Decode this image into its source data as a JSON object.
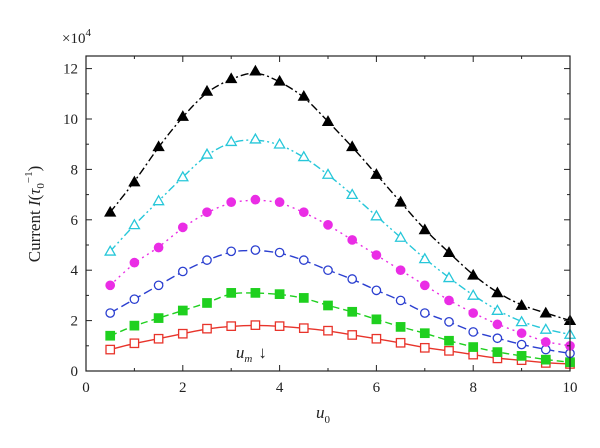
{
  "chart_data": {
    "type": "line",
    "title": "",
    "multiplier_label": "×10",
    "multiplier_exponent": "4",
    "xlabel": {
      "base": "u",
      "sub": "0"
    },
    "ylabel": {
      "prefix": "Current ",
      "var": "I",
      "open": "(",
      "tau": "τ",
      "tau_sub": "0",
      "sup": "−1",
      "close": ")"
    },
    "annotation": {
      "base": "u",
      "sub": "m",
      "arrow": "↓",
      "x": 3.5
    },
    "xlim": [
      0,
      10
    ],
    "ylim": [
      0,
      12.5
    ],
    "xticks": [
      0,
      2,
      4,
      6,
      8,
      10
    ],
    "yticks": [
      0,
      2,
      4,
      6,
      8,
      10,
      12
    ],
    "grid": false,
    "x": [
      0.5,
      1.0,
      1.5,
      2.0,
      2.5,
      3.0,
      3.5,
      4.0,
      4.5,
      5.0,
      5.5,
      6.0,
      6.5,
      7.0,
      7.5,
      8.0,
      8.5,
      9.0,
      9.5,
      10.0
    ],
    "series": [
      {
        "marker": "square-open",
        "color": "#e8342b",
        "dash": "solid",
        "values": [
          0.85,
          1.1,
          1.28,
          1.48,
          1.68,
          1.78,
          1.82,
          1.78,
          1.7,
          1.6,
          1.43,
          1.28,
          1.12,
          0.92,
          0.8,
          0.65,
          0.5,
          0.43,
          0.32,
          0.28
        ]
      },
      {
        "marker": "square-filled",
        "color": "#1fd01f",
        "dash": "dash",
        "values": [
          1.4,
          1.8,
          2.1,
          2.4,
          2.7,
          3.1,
          3.1,
          3.05,
          2.9,
          2.6,
          2.35,
          2.05,
          1.75,
          1.5,
          1.2,
          0.95,
          0.75,
          0.6,
          0.45,
          0.35
        ]
      },
      {
        "marker": "circle-open",
        "color": "#2b3fd0",
        "dash": "longdash",
        "values": [
          2.3,
          2.85,
          3.4,
          3.95,
          4.4,
          4.75,
          4.8,
          4.7,
          4.4,
          4.0,
          3.65,
          3.2,
          2.8,
          2.3,
          1.95,
          1.55,
          1.3,
          1.05,
          0.85,
          0.7
        ]
      },
      {
        "marker": "circle-filled",
        "color": "#ea2de5",
        "dash": "dot",
        "values": [
          3.4,
          4.3,
          4.9,
          5.7,
          6.3,
          6.7,
          6.8,
          6.7,
          6.3,
          5.8,
          5.2,
          4.6,
          4.0,
          3.4,
          2.8,
          2.3,
          1.85,
          1.5,
          1.15,
          1.0
        ]
      },
      {
        "marker": "triangle-open",
        "color": "#27c7d9",
        "dash": "dashdotdot",
        "values": [
          4.75,
          5.8,
          6.75,
          7.7,
          8.6,
          9.1,
          9.2,
          9.0,
          8.5,
          7.8,
          7.0,
          6.15,
          5.3,
          4.45,
          3.7,
          3.0,
          2.4,
          1.95,
          1.65,
          1.45
        ]
      },
      {
        "marker": "triangle-filled",
        "color": "#000000",
        "dash": "dashdot",
        "values": [
          6.3,
          7.5,
          8.9,
          10.1,
          11.1,
          11.6,
          11.9,
          11.5,
          10.9,
          9.9,
          8.9,
          7.8,
          6.7,
          5.6,
          4.7,
          3.8,
          3.1,
          2.6,
          2.3,
          2.0
        ]
      }
    ]
  }
}
